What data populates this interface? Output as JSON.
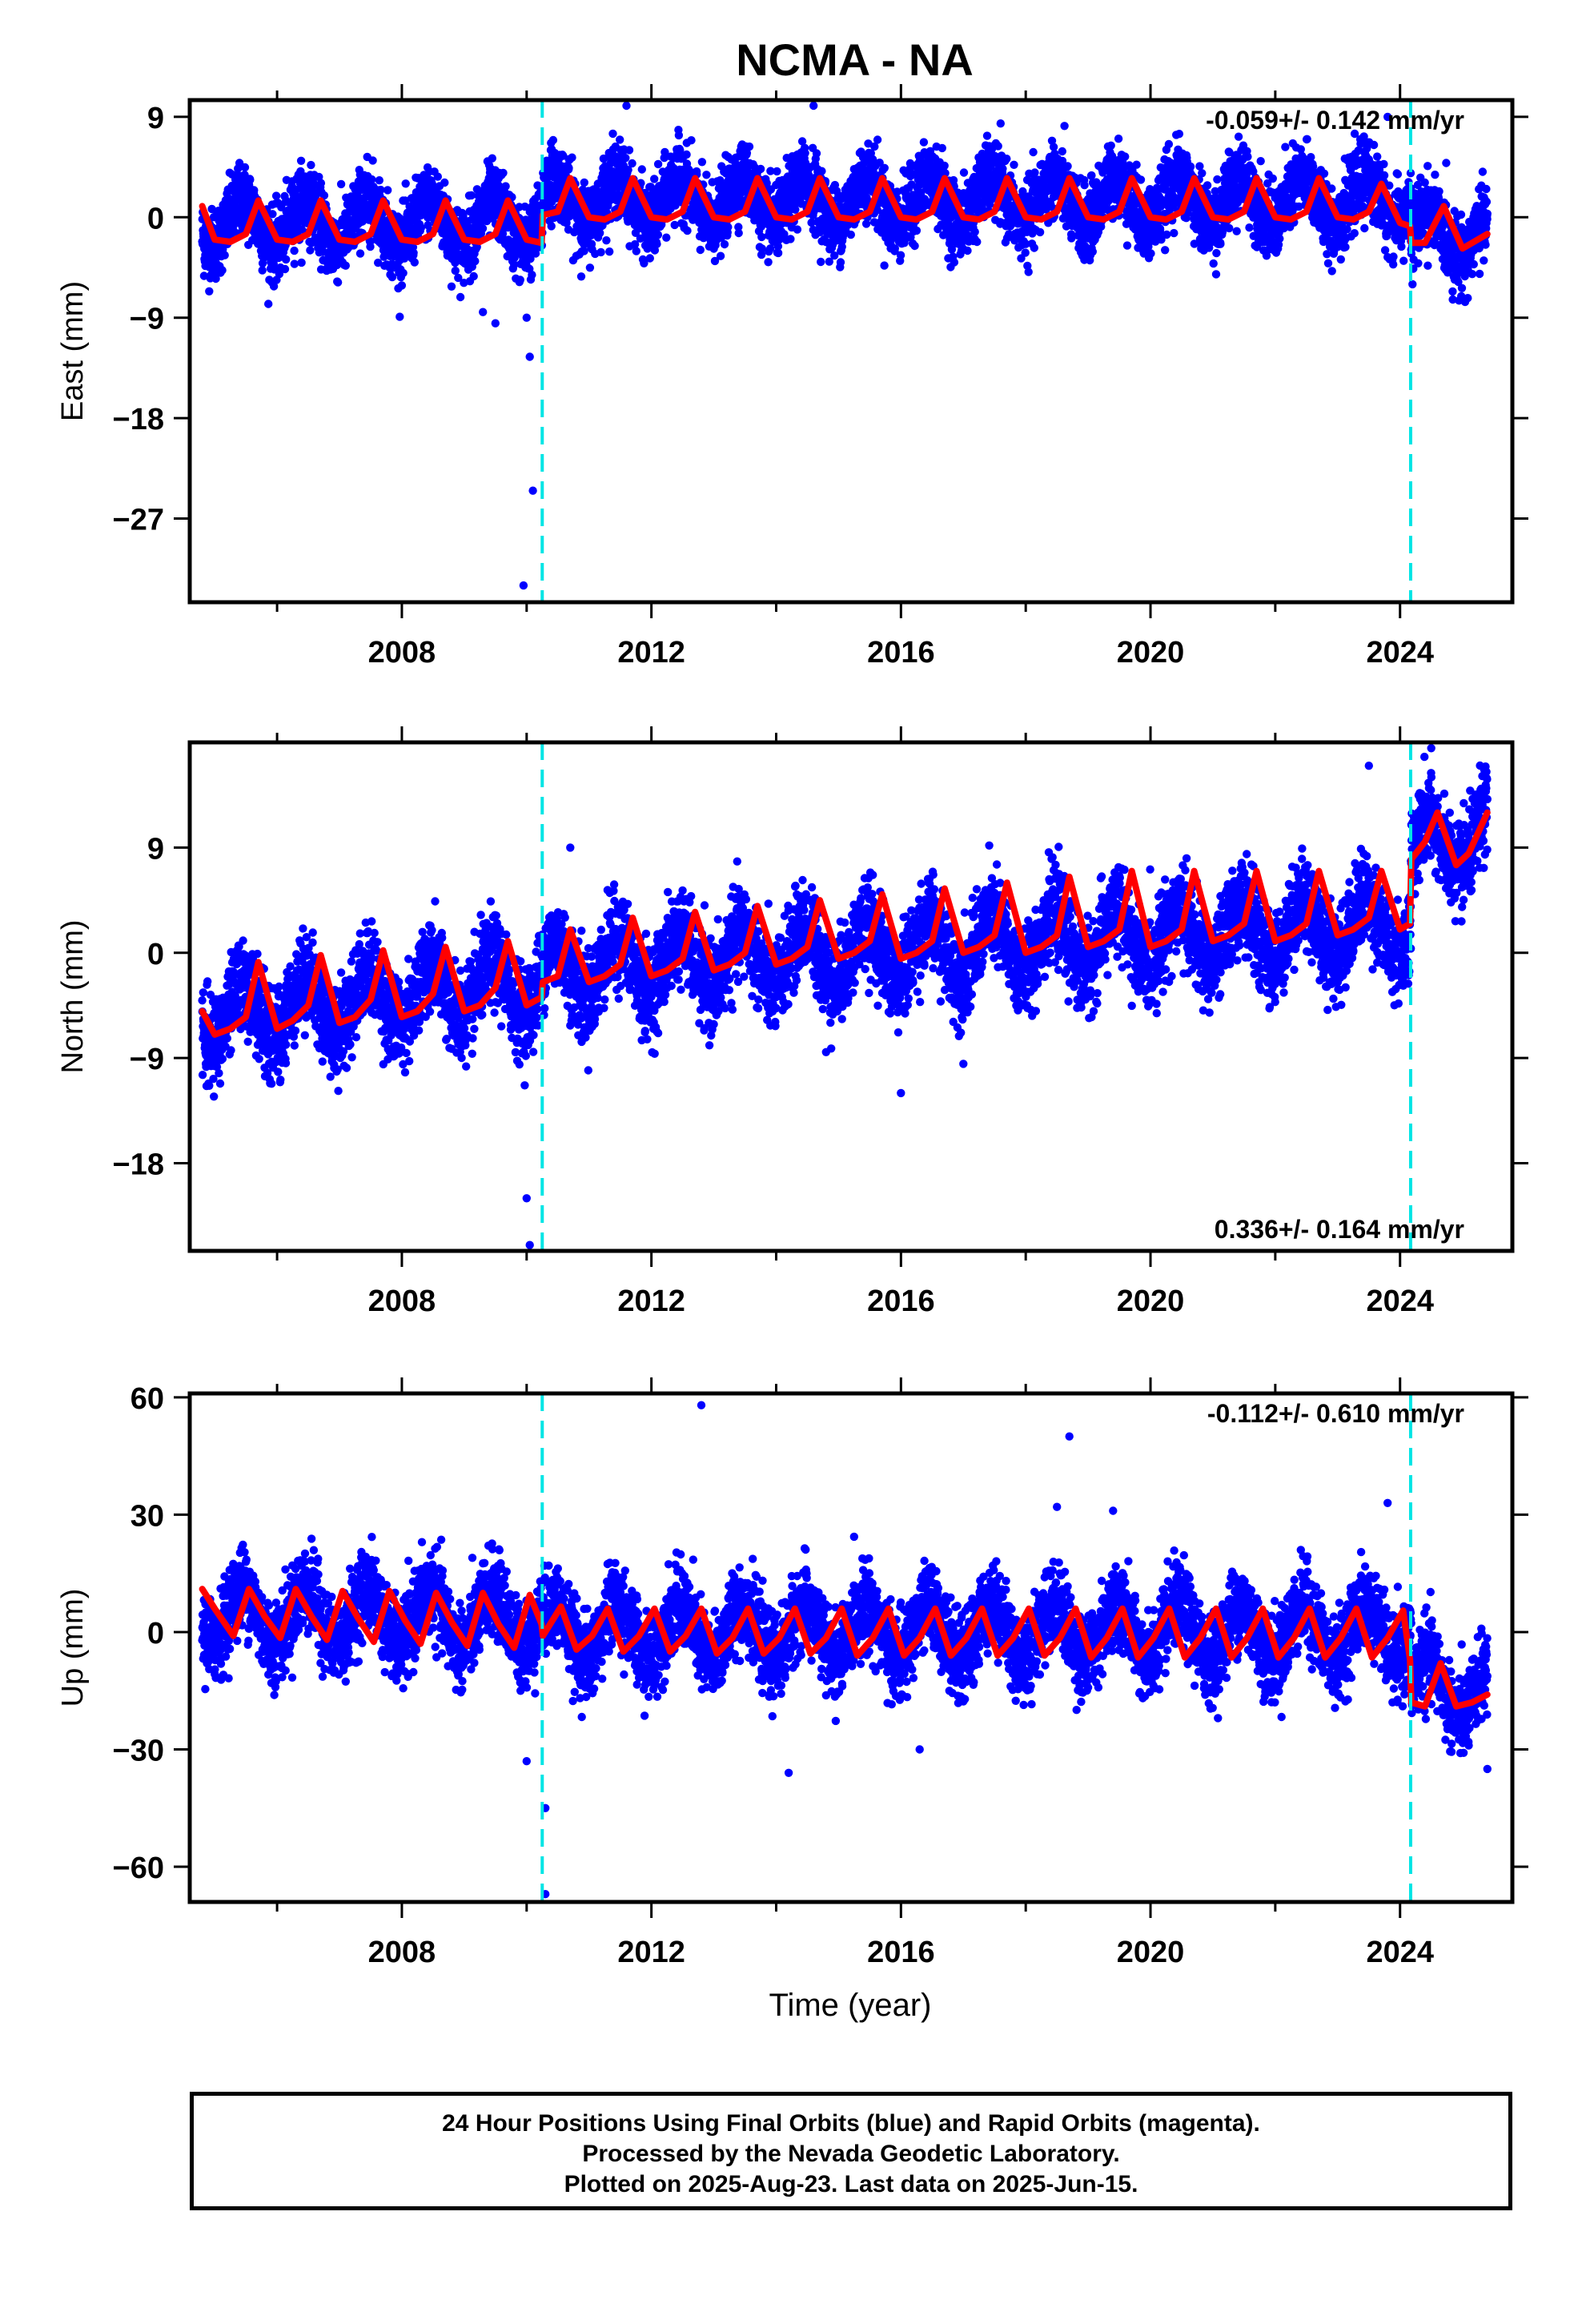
{
  "title": "NCMA - NA",
  "xlabel": "Time (year)",
  "footer": {
    "line1": "24 Hour Positions Using Final Orbits (blue) and Rapid Orbits (magenta).",
    "line2": "Processed by the Nevada Geodetic Laboratory.",
    "line3": "Plotted on 2025-Aug-23. Last data on 2025-Jun-15."
  },
  "colors": {
    "points": "#0000ff",
    "model": "#ff0000",
    "step_lines": "#00e5e5",
    "axes": "#000000"
  },
  "chart_data": [
    {
      "type": "scatter",
      "ylabel": "East (mm)",
      "rate_label": "-0.059+/- 0.142 mm/yr",
      "rate_position": "top-right",
      "xlim": [
        2004.6,
        2025.8
      ],
      "ylim": [
        -34.5,
        10.5
      ],
      "x_ticks": [
        2008,
        2012,
        2016,
        2020,
        2024
      ],
      "y_ticks": [
        9,
        0,
        -9,
        -18,
        -27
      ],
      "y_tick_labels": [
        "9",
        "0",
        "−9",
        "−18",
        "−27"
      ],
      "step_lines_x": [
        2010.25,
        2024.17
      ],
      "model_curve": {
        "x": [
          2004.8,
          2005.0,
          2005.25,
          2005.5,
          2005.7,
          2006.0,
          2006.25,
          2006.5,
          2006.7,
          2007.0,
          2007.25,
          2007.5,
          2007.7,
          2008.0,
          2008.25,
          2008.5,
          2008.7,
          2009.0,
          2009.25,
          2009.5,
          2009.7,
          2010.0,
          2010.24,
          2010.26,
          2010.5,
          2010.7,
          2011.0,
          2011.25,
          2011.5,
          2011.7,
          2012.0,
          2012.25,
          2012.5,
          2012.7,
          2013.0,
          2013.25,
          2013.5,
          2013.7,
          2014.0,
          2014.25,
          2014.5,
          2014.7,
          2015.0,
          2015.25,
          2015.5,
          2015.7,
          2016.0,
          2016.25,
          2016.5,
          2016.7,
          2017.0,
          2017.25,
          2017.5,
          2017.7,
          2018.0,
          2018.25,
          2018.5,
          2018.7,
          2019.0,
          2019.25,
          2019.5,
          2019.7,
          2020.0,
          2020.25,
          2020.5,
          2020.7,
          2021.0,
          2021.25,
          2021.5,
          2021.7,
          2022.0,
          2022.25,
          2022.5,
          2022.7,
          2023.0,
          2023.25,
          2023.5,
          2023.7,
          2024.0,
          2024.16,
          2024.18,
          2024.4,
          2024.7,
          2025.0,
          2025.4
        ],
        "y": [
          1.0,
          -2.0,
          -2.2,
          -1.5,
          1.5,
          -2.0,
          -2.2,
          -1.5,
          1.5,
          -2.0,
          -2.2,
          -1.5,
          1.5,
          -2.0,
          -2.2,
          -1.5,
          1.5,
          -2.0,
          -2.2,
          -1.5,
          1.5,
          -2.0,
          -2.3,
          0.2,
          0.5,
          3.5,
          0.0,
          -0.2,
          0.5,
          3.5,
          0.0,
          -0.2,
          0.5,
          3.5,
          0.0,
          -0.2,
          0.5,
          3.5,
          0.0,
          -0.2,
          0.5,
          3.5,
          0.0,
          -0.2,
          0.5,
          3.5,
          0.0,
          -0.2,
          0.5,
          3.5,
          0.0,
          -0.2,
          0.5,
          3.5,
          0.0,
          -0.2,
          0.5,
          3.5,
          0.0,
          -0.2,
          0.5,
          3.5,
          0.0,
          -0.2,
          0.5,
          3.5,
          0.0,
          -0.2,
          0.5,
          3.5,
          0.0,
          -0.2,
          0.5,
          3.5,
          0.0,
          -0.2,
          0.5,
          3.0,
          -0.5,
          -0.8,
          -2.3,
          -2.3,
          1.0,
          -2.8,
          -1.5
        ]
      },
      "points": {
        "trend": [
          [
            2004.8,
            -0.5
          ],
          [
            2010.25,
            -0.5
          ],
          [
            2010.26,
            1.5
          ],
          [
            2024.17,
            1.5
          ],
          [
            2024.18,
            -1.5
          ],
          [
            2025.4,
            -1.5
          ]
        ],
        "seasonal_amplitude": 2.0,
        "scatter_sd": 1.6,
        "outliers": [
          [
            2010.0,
            -9.0
          ],
          [
            2010.05,
            -12.5
          ],
          [
            2010.1,
            -24.5
          ],
          [
            2009.95,
            -33.0
          ],
          [
            2011.6,
            10.0
          ],
          [
            2014.6,
            10.0
          ],
          [
            2009.5,
            -9.5
          ],
          [
            2009.3,
            -8.5
          ],
          [
            2023.8,
            9.0
          ],
          [
            2024.2,
            -6.0
          ]
        ]
      }
    },
    {
      "type": "scatter",
      "ylabel": "North (mm)",
      "rate_label": "0.336+/- 0.164 mm/yr",
      "rate_position": "bottom-right",
      "xlim": [
        2004.6,
        2025.8
      ],
      "ylim": [
        -25.5,
        18.0
      ],
      "x_ticks": [
        2008,
        2012,
        2016,
        2020,
        2024
      ],
      "y_ticks": [
        9,
        0,
        -9,
        -18
      ],
      "y_tick_labels": [
        "9",
        "0",
        "−9",
        "−18"
      ],
      "step_lines_x": [
        2010.25,
        2024.17
      ],
      "model_curve": {
        "x": [
          2004.8,
          2005.0,
          2005.25,
          2005.5,
          2005.7,
          2006.0,
          2006.25,
          2006.5,
          2006.7,
          2007.0,
          2007.25,
          2007.5,
          2007.7,
          2008.0,
          2008.25,
          2008.5,
          2008.7,
          2009.0,
          2009.25,
          2009.5,
          2009.7,
          2010.0,
          2010.24,
          2010.26,
          2010.5,
          2010.7,
          2011.0,
          2011.25,
          2011.5,
          2011.7,
          2012.0,
          2012.25,
          2012.5,
          2012.7,
          2013.0,
          2013.25,
          2013.5,
          2013.7,
          2014.0,
          2014.25,
          2014.5,
          2014.7,
          2015.0,
          2015.25,
          2015.5,
          2015.7,
          2016.0,
          2016.25,
          2016.5,
          2016.7,
          2017.0,
          2017.25,
          2017.5,
          2017.7,
          2018.0,
          2018.25,
          2018.5,
          2018.7,
          2019.0,
          2019.25,
          2019.5,
          2019.7,
          2020.0,
          2020.25,
          2020.5,
          2020.7,
          2021.0,
          2021.25,
          2021.5,
          2021.7,
          2022.0,
          2022.25,
          2022.5,
          2022.7,
          2023.0,
          2023.25,
          2023.5,
          2023.7,
          2024.0,
          2024.16,
          2024.18,
          2024.4,
          2024.6,
          2024.9,
          2025.1,
          2025.4
        ],
        "y": [
          -5.0,
          -7.0,
          -6.5,
          -5.5,
          -0.8,
          -6.5,
          -5.8,
          -4.5,
          -0.2,
          -6.0,
          -5.5,
          -4.0,
          0.2,
          -5.5,
          -5.0,
          -3.5,
          0.5,
          -5.0,
          -4.5,
          -3.0,
          1.0,
          -4.5,
          -3.8,
          -2.5,
          -2.0,
          2.0,
          -2.5,
          -2.0,
          -1.0,
          3.0,
          -2.0,
          -1.5,
          -0.5,
          3.5,
          -1.5,
          -1.0,
          0.0,
          4.0,
          -1.0,
          -0.5,
          0.5,
          4.5,
          -0.5,
          0.0,
          1.0,
          5.0,
          -0.5,
          0.0,
          1.0,
          5.5,
          0.0,
          0.5,
          1.5,
          6.0,
          0.0,
          0.5,
          1.5,
          6.5,
          0.5,
          1.0,
          2.0,
          7.0,
          0.5,
          1.0,
          2.0,
          7.0,
          1.0,
          1.5,
          2.5,
          7.0,
          1.0,
          1.5,
          2.5,
          7.0,
          1.5,
          2.0,
          3.0,
          7.0,
          2.0,
          2.5,
          8.0,
          9.5,
          12.0,
          7.5,
          8.5,
          12.0
        ]
      },
      "points": {
        "trend": [
          [
            2004.8,
            -5.5
          ],
          [
            2010.25,
            -2.5
          ],
          [
            2010.26,
            -1.5
          ],
          [
            2024.17,
            2.5
          ],
          [
            2024.18,
            8.5
          ],
          [
            2025.4,
            10.0
          ]
        ],
        "seasonal_amplitude": 2.4,
        "scatter_sd": 1.9,
        "outliers": [
          [
            2010.0,
            -21.0
          ],
          [
            2010.05,
            -25.0
          ],
          [
            2016.0,
            -12.0
          ],
          [
            2017.0,
            -9.5
          ],
          [
            2014.8,
            -8.5
          ],
          [
            2024.5,
            17.5
          ],
          [
            2023.5,
            16.0
          ],
          [
            2010.7,
            9.0
          ]
        ]
      }
    },
    {
      "type": "scatter",
      "ylabel": "Up (mm)",
      "rate_label": "-0.112+/- 0.610 mm/yr",
      "rate_position": "top-right",
      "xlim": [
        2004.6,
        2025.8
      ],
      "ylim": [
        -69.0,
        61.0
      ],
      "x_ticks": [
        2008,
        2012,
        2016,
        2020,
        2024
      ],
      "y_ticks": [
        60,
        30,
        0,
        -30,
        -60
      ],
      "y_tick_labels": [
        "60",
        "30",
        "0",
        "−30",
        "−60"
      ],
      "step_lines_x": [
        2010.25,
        2024.17
      ],
      "model_curve": {
        "x": [
          2004.8,
          2005.0,
          2005.3,
          2005.55,
          2005.8,
          2006.05,
          2006.3,
          2006.55,
          2006.8,
          2007.05,
          2007.3,
          2007.55,
          2007.8,
          2008.05,
          2008.3,
          2008.55,
          2008.8,
          2009.05,
          2009.3,
          2009.55,
          2009.8,
          2010.05,
          2010.24,
          2010.26,
          2010.55,
          2010.8,
          2011.05,
          2011.3,
          2011.55,
          2011.8,
          2012.05,
          2012.3,
          2012.55,
          2012.8,
          2013.05,
          2013.3,
          2013.55,
          2013.8,
          2014.05,
          2014.3,
          2014.55,
          2014.8,
          2015.05,
          2015.3,
          2015.55,
          2015.8,
          2016.05,
          2016.3,
          2016.55,
          2016.8,
          2017.05,
          2017.3,
          2017.55,
          2017.8,
          2018.05,
          2018.3,
          2018.55,
          2018.8,
          2019.05,
          2019.3,
          2019.55,
          2019.8,
          2020.05,
          2020.3,
          2020.55,
          2020.8,
          2021.05,
          2021.3,
          2021.55,
          2021.8,
          2022.05,
          2022.3,
          2022.55,
          2022.8,
          2023.05,
          2023.3,
          2023.55,
          2023.8,
          2024.05,
          2024.16,
          2024.18,
          2024.4,
          2024.65,
          2024.9,
          2025.15,
          2025.4
        ],
        "y": [
          11.0,
          6.0,
          -1.0,
          11.0,
          4.0,
          -1.5,
          11.0,
          4.0,
          -2.0,
          10.5,
          3.5,
          -2.5,
          10.5,
          3.0,
          -3.0,
          10.0,
          2.5,
          -3.5,
          10.0,
          2.0,
          -4.0,
          9.5,
          2.0,
          -1.0,
          6.5,
          -4.5,
          -1.0,
          6.0,
          -5.0,
          -1.0,
          6.0,
          -5.0,
          -1.0,
          6.0,
          -5.5,
          -1.5,
          6.0,
          -5.5,
          -1.5,
          6.0,
          -5.5,
          -1.5,
          6.0,
          -6.0,
          -1.5,
          6.0,
          -6.0,
          -1.5,
          6.0,
          -6.0,
          -1.5,
          6.0,
          -6.0,
          -1.5,
          6.0,
          -6.0,
          -1.5,
          6.0,
          -6.5,
          -1.5,
          6.0,
          -6.5,
          -1.5,
          6.0,
          -6.5,
          -1.5,
          6.0,
          -6.5,
          -1.5,
          6.0,
          -6.5,
          -1.5,
          6.0,
          -6.5,
          -1.5,
          6.0,
          -6.5,
          -1.5,
          5.5,
          -7.0,
          -18.0,
          -19.0,
          -8.0,
          -19.0,
          -18.0,
          -16.0
        ]
      },
      "points": {
        "trend": [
          [
            2004.8,
            4.5
          ],
          [
            2010.25,
            3.0
          ],
          [
            2010.26,
            0.0
          ],
          [
            2024.17,
            0.0
          ],
          [
            2024.18,
            -13.0
          ],
          [
            2025.4,
            -16.0
          ]
        ],
        "seasonal_amplitude": 7.0,
        "scatter_sd": 5.2,
        "outliers": [
          [
            2012.8,
            58.0
          ],
          [
            2018.7,
            50.0
          ],
          [
            2010.3,
            -45.0
          ],
          [
            2010.3,
            -67.0
          ],
          [
            2010.0,
            -33.0
          ],
          [
            2014.2,
            -36.0
          ],
          [
            2016.3,
            -30.0
          ],
          [
            2018.5,
            32.0
          ],
          [
            2019.4,
            31.0
          ],
          [
            2023.8,
            33.0
          ],
          [
            2025.4,
            -35.0
          ]
        ]
      }
    }
  ]
}
